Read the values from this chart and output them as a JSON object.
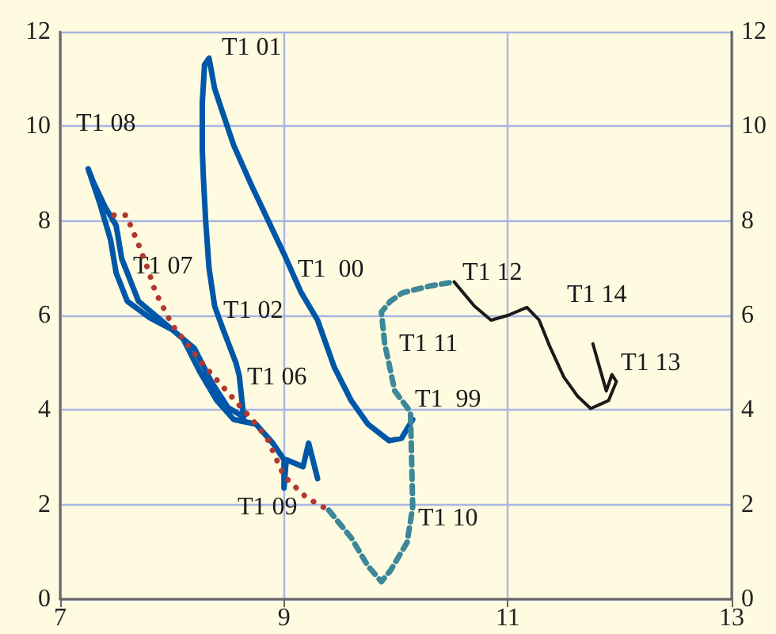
{
  "chart_data": {
    "type": "line",
    "xlim": [
      7,
      13
    ],
    "xticks": [
      7,
      9,
      11,
      13
    ],
    "ylim": [
      0,
      12
    ],
    "yticks": [
      0,
      2,
      4,
      6,
      8,
      10,
      12
    ],
    "y2lim": [
      0,
      12
    ],
    "y2ticks": [
      0,
      2,
      4,
      6,
      8,
      10,
      12
    ],
    "grid": true,
    "marker": "none",
    "series": [
      {
        "color": "#0057a8",
        "line_style": "solid",
        "x": [
          10.15,
          10.05,
          9.94,
          9.75,
          9.6,
          9.45,
          9.3,
          9.15,
          9.0,
          8.85,
          8.7,
          8.55,
          8.45,
          8.38,
          8.33,
          8.29,
          8.27,
          8.27,
          8.28,
          8.3,
          8.33,
          8.38,
          8.45,
          8.57,
          8.6,
          8.64,
          8.5,
          8.35,
          8.2,
          8.0,
          7.8,
          7.6,
          7.5,
          7.45,
          7.35,
          7.25,
          7.3,
          7.4,
          7.5,
          7.55,
          7.7,
          7.95,
          8.1,
          8.25,
          8.4,
          8.55,
          8.75,
          8.9,
          9.0,
          9.0,
          9.02,
          9.17,
          9.22,
          9.3
        ],
        "values": [
          3.8,
          3.4,
          3.35,
          3.7,
          4.2,
          4.9,
          5.9,
          6.5,
          7.3,
          8.05,
          8.8,
          9.6,
          10.3,
          10.8,
          11.44,
          11.3,
          10.5,
          9.5,
          8.9,
          8.0,
          7.0,
          6.2,
          5.74,
          5.0,
          4.73,
          3.85,
          4.05,
          4.6,
          5.3,
          5.7,
          5.95,
          6.3,
          6.9,
          7.6,
          8.4,
          9.1,
          8.8,
          8.3,
          7.9,
          7.2,
          6.3,
          5.8,
          5.5,
          4.8,
          4.2,
          3.8,
          3.7,
          3.3,
          2.95,
          2.35,
          2.95,
          2.8,
          3.3,
          2.55
        ]
      },
      {
        "color": "#b0392e",
        "line_style": "dotted",
        "x": [
          7.48,
          7.59,
          7.7,
          7.78,
          7.85,
          8.0,
          8.15,
          8.3,
          8.45,
          8.6,
          8.75,
          8.85,
          9.0,
          9.2,
          9.4
        ],
        "values": [
          8.12,
          8.12,
          7.5,
          7.0,
          6.5,
          5.8,
          5.35,
          4.9,
          4.5,
          4.1,
          3.7,
          3.4,
          2.6,
          2.15,
          1.88
        ]
      },
      {
        "color": "#3d8799",
        "line_style": "dashed",
        "x": [
          9.4,
          9.6,
          9.75,
          9.87,
          9.95,
          10.1,
          10.15,
          10.14,
          10.13,
          9.99,
          9.9,
          9.87,
          9.95,
          10.06,
          10.3,
          10.52
        ],
        "values": [
          1.88,
          1.3,
          0.7,
          0.37,
          0.6,
          1.2,
          1.95,
          3.0,
          3.96,
          4.4,
          5.4,
          6.07,
          6.3,
          6.48,
          6.62,
          6.71
        ]
      },
      {
        "color": "#1a1a1a",
        "line_style": "solid",
        "x": [
          10.52,
          10.7,
          10.85,
          11.0,
          11.17,
          11.28,
          11.37,
          11.5,
          11.62,
          11.74,
          11.9,
          11.97,
          11.93,
          11.88,
          11.82,
          11.76
        ],
        "values": [
          6.71,
          6.2,
          5.9,
          6.0,
          6.17,
          5.9,
          5.37,
          4.7,
          4.3,
          4.03,
          4.2,
          4.6,
          4.75,
          4.4,
          4.9,
          5.4
        ]
      }
    ],
    "annotations": [
      "T1 01",
      "T1 08",
      "T1 07",
      "T1 02",
      "T1 06",
      "T1 09",
      "T1  00",
      "T1 11",
      "T1  99",
      "T1 10",
      "T1 12",
      "T1 14",
      "T1 13"
    ]
  }
}
